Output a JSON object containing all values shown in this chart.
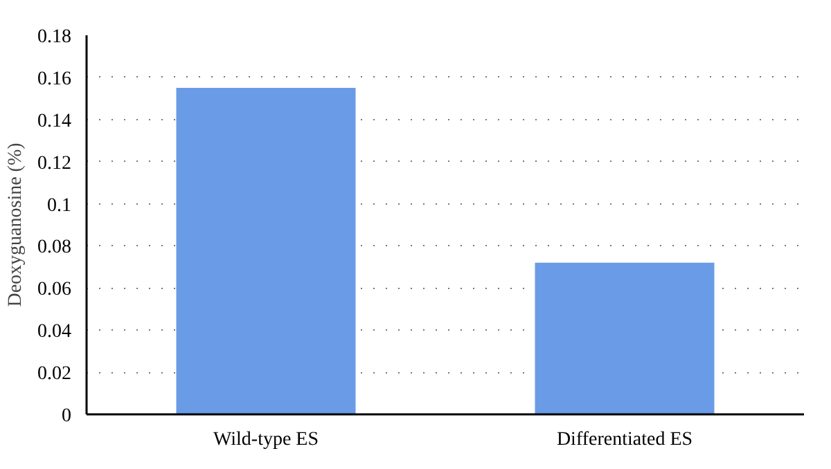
{
  "chart_data": {
    "type": "bar",
    "ylabel": "Deoxyguanosine (%)",
    "categories": [
      "Wild-type ES",
      "Differentiated ES"
    ],
    "values": [
      0.155,
      0.072
    ],
    "color": "#6a9be6",
    "ylim": [
      0,
      0.18
    ],
    "yticks": [
      {
        "value": 0,
        "label": "0"
      },
      0.02,
      0.04,
      0.06,
      0.08,
      {
        "value": 0.1,
        "label": "0.1"
      },
      0.12,
      0.14,
      0.16,
      0.18
    ],
    "grid": "y"
  }
}
